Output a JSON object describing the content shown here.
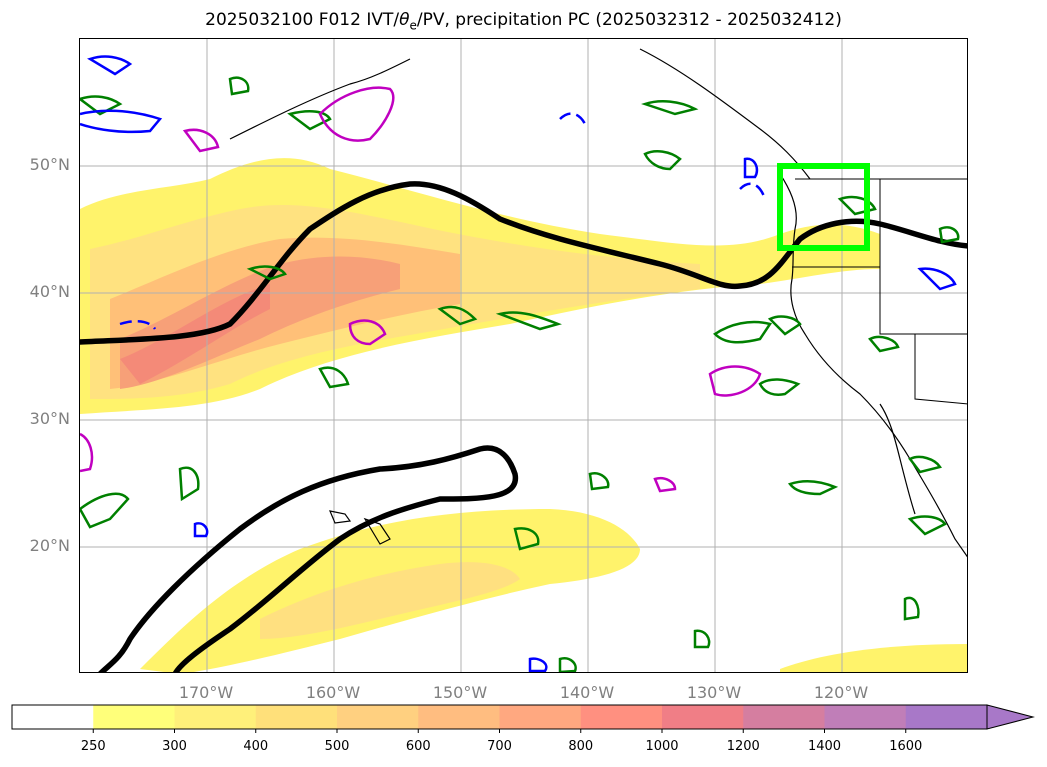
{
  "title": "2025032100 F012 IVT/θe/PV, precipitation PC (2025032312 - 2025032412)",
  "title_parts": {
    "before": "2025032100 F012 IVT/",
    "theta": "θ",
    "theta_sub": "e",
    "after": "/PV, precipitation PC (2025032312 - 2025032412)"
  },
  "map": {
    "lon_range": [
      -180,
      -110
    ],
    "lat_range": [
      10,
      60
    ],
    "lat_labels": [
      "20°N",
      "30°N",
      "40°N",
      "50°N"
    ],
    "lat_values": [
      20,
      30,
      40,
      50
    ],
    "lon_labels": [
      "170°W",
      "160°W",
      "150°W",
      "140°W",
      "130°W",
      "120°W"
    ],
    "lon_values": [
      -170,
      -160,
      -150,
      -140,
      -130,
      -120
    ],
    "gridlines": true,
    "highlight_box": {
      "lon": [
        -125,
        -118
      ],
      "lat": [
        43.5,
        50
      ],
      "color": "#00ff00"
    },
    "colors": {
      "ivt_fill": "#fff36b",
      "ivt_mid": "#ffcf70",
      "ivt_high": "#f48a78",
      "pv_contour": "#000000",
      "green_contour": "#008000",
      "blue_contour": "#0000ff",
      "magenta_contour": "#c000c0"
    }
  },
  "colorbar": {
    "ticks": [
      "250",
      "300",
      "400",
      "500",
      "600",
      "700",
      "800",
      "1000",
      "1200",
      "1400",
      "1600"
    ],
    "colors": [
      "#ffffff",
      "#ffff7a",
      "#fff07a",
      "#ffe07a",
      "#ffd080",
      "#ffbd80",
      "#ffa880",
      "#ff9080",
      "#f07e86",
      "#d57ea0",
      "#c07eb8",
      "#a878c8"
    ],
    "extend": "max"
  }
}
